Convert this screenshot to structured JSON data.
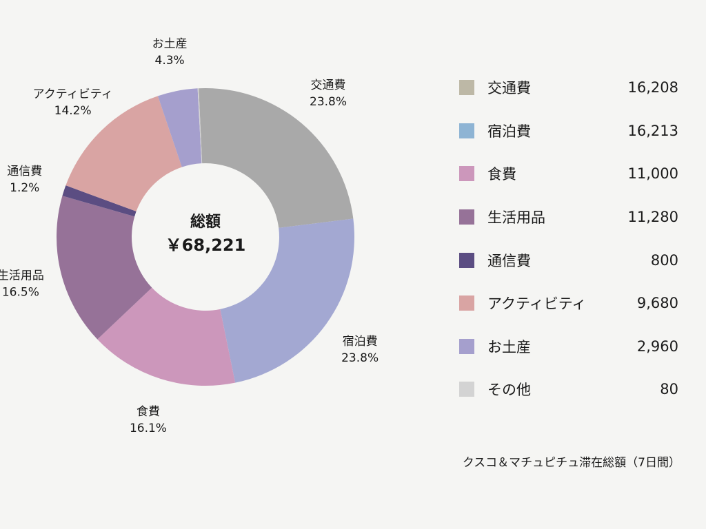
{
  "chart_data": {
    "type": "pie",
    "subtype": "donut",
    "center": {
      "title": "総額",
      "total": "￥68,221"
    },
    "slices": [
      {
        "name": "交通費",
        "value": 16208,
        "percent_label": "23.8%",
        "color": "#a9a9a9"
      },
      {
        "name": "宿泊費",
        "value": 16213,
        "percent_label": "23.8%",
        "color": "#a3a8d2"
      },
      {
        "name": "食費",
        "value": 11000,
        "percent_label": "16.1%",
        "color": "#cc97bb"
      },
      {
        "name": "生活用品",
        "value": 11280,
        "percent_label": "16.5%",
        "color": "#967298"
      },
      {
        "name": "通信費",
        "value": 800,
        "percent_label": "1.2%",
        "color": "#5b4d82"
      },
      {
        "name": "アクティビティ",
        "value": 9680,
        "percent_label": "14.2%",
        "color": "#d9a4a3"
      },
      {
        "name": "お土産",
        "value": 2960,
        "percent_label": "4.3%",
        "color": "#a59fcd"
      },
      {
        "name": "その他",
        "value": 80,
        "percent_label": "",
        "color": "#d3d3d3"
      }
    ],
    "legend": [
      {
        "name": "交通費",
        "value": "16,208",
        "color": "#bdb8a6"
      },
      {
        "name": "宿泊費",
        "value": "16,213",
        "color": "#8eb4d4"
      },
      {
        "name": "食費",
        "value": "11,000",
        "color": "#cc97bb"
      },
      {
        "name": "生活用品",
        "value": "11,280",
        "color": "#967298"
      },
      {
        "name": "通信費",
        "value": "800",
        "color": "#5b4d82"
      },
      {
        "name": "アクティビティ",
        "value": "9,680",
        "color": "#d9a4a3"
      },
      {
        "name": "お土産",
        "value": "2,960",
        "color": "#a59fcd"
      },
      {
        "name": "その他",
        "value": "80",
        "color": "#d3d3d3"
      }
    ],
    "legend_position": "right",
    "caption": "クスコ＆マチュピチュ滞在総額（7日間）"
  }
}
